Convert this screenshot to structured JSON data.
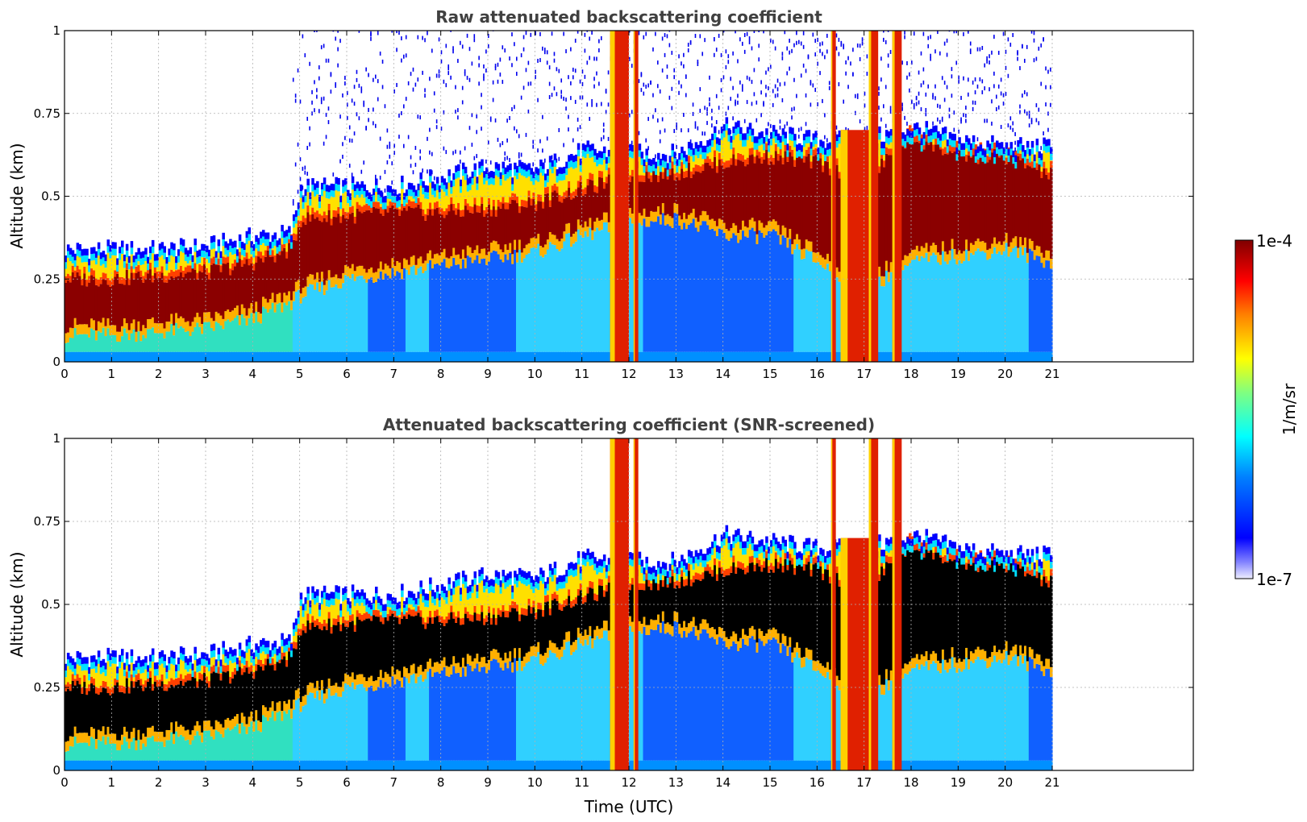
{
  "colorbar": {
    "label": "1/m/sr",
    "max_label": "1e-4",
    "min_label": "1e-7",
    "range": [
      1e-07,
      0.0001
    ],
    "scale": "log",
    "colormap": "jet",
    "colormap_stops": [
      "#eeeeff",
      "#0000ff",
      "#00ffff",
      "#ffff00",
      "#ff0000",
      "#800000"
    ]
  },
  "chart_data": [
    {
      "type": "heatmap",
      "title": "Raw attenuated backscattering coefficient",
      "xlabel": "",
      "ylabel": "Altitude (km)",
      "xlim": [
        0,
        24
      ],
      "ylim": [
        0,
        1
      ],
      "x_ticks": [
        "0",
        "1",
        "2",
        "3",
        "4",
        "5",
        "6",
        "7",
        "8",
        "9",
        "10",
        "11",
        "12",
        "13",
        "14",
        "15",
        "16",
        "17",
        "18",
        "19",
        "20",
        "21"
      ],
      "y_ticks": [
        "0",
        "0.25",
        "0.5",
        "0.75",
        "1"
      ],
      "data_extent_x": [
        0,
        21
      ],
      "grid": true,
      "layer_top_km": [
        [
          0,
          0.33
        ],
        [
          1,
          0.33
        ],
        [
          2,
          0.33
        ],
        [
          3,
          0.34
        ],
        [
          4,
          0.37
        ],
        [
          4.8,
          0.38
        ],
        [
          5,
          0.52
        ],
        [
          6,
          0.52
        ],
        [
          7,
          0.52
        ],
        [
          8,
          0.55
        ],
        [
          9,
          0.58
        ],
        [
          10,
          0.57
        ],
        [
          11,
          0.63
        ],
        [
          12,
          0.62
        ],
        [
          13,
          0.62
        ],
        [
          14,
          0.7
        ],
        [
          15,
          0.68
        ],
        [
          16,
          0.66
        ],
        [
          17,
          0.66
        ],
        [
          18,
          0.7
        ],
        [
          19,
          0.66
        ],
        [
          20,
          0.64
        ],
        [
          21,
          0.64
        ]
      ],
      "dense_layer_km": [
        [
          0,
          0.08,
          0.25
        ],
        [
          1,
          0.08,
          0.25
        ],
        [
          2,
          0.09,
          0.26
        ],
        [
          3,
          0.1,
          0.27
        ],
        [
          4,
          0.13,
          0.3
        ],
        [
          4.8,
          0.18,
          0.34
        ],
        [
          5,
          0.2,
          0.43
        ],
        [
          6,
          0.25,
          0.44
        ],
        [
          7,
          0.27,
          0.45
        ],
        [
          8,
          0.29,
          0.45
        ],
        [
          9,
          0.31,
          0.46
        ],
        [
          10,
          0.33,
          0.48
        ],
        [
          11,
          0.38,
          0.52
        ],
        [
          12,
          0.42,
          0.56
        ],
        [
          13,
          0.43,
          0.57
        ],
        [
          14,
          0.38,
          0.6
        ],
        [
          15,
          0.38,
          0.62
        ],
        [
          16,
          0.3,
          0.6
        ],
        [
          17,
          0.22,
          0.55
        ],
        [
          18,
          0.3,
          0.68
        ],
        [
          19,
          0.32,
          0.62
        ],
        [
          20,
          0.34,
          0.62
        ],
        [
          21,
          0.3,
          0.56
        ]
      ],
      "precipitation_columns": [
        {
          "t_start": 11.6,
          "t_end": 12.0,
          "top_km": 1.0
        },
        {
          "t_start": 12.1,
          "t_end": 12.2,
          "top_km": 1.0
        },
        {
          "t_start": 16.3,
          "t_end": 16.4,
          "top_km": 1.0
        },
        {
          "t_start": 16.5,
          "t_end": 17.1,
          "top_km": 0.7
        },
        {
          "t_start": 17.1,
          "t_end": 17.3,
          "top_km": 1.0
        },
        {
          "t_start": 17.6,
          "t_end": 17.8,
          "top_km": 1.0
        }
      ]
    },
    {
      "type": "heatmap",
      "title": "Attenuated backscattering coefficient (SNR-screened)",
      "xlabel": "Time (UTC)",
      "ylabel": "Altitude (km)",
      "xlim": [
        0,
        24
      ],
      "ylim": [
        0,
        1
      ],
      "x_ticks": [
        "0",
        "1",
        "2",
        "3",
        "4",
        "5",
        "6",
        "7",
        "8",
        "9",
        "10",
        "11",
        "12",
        "13",
        "14",
        "15",
        "16",
        "17",
        "18",
        "19",
        "20",
        "21"
      ],
      "y_ticks": [
        "0",
        "0.25",
        "0.5",
        "0.75",
        "1"
      ],
      "data_extent_x": [
        0,
        21
      ],
      "grid": true,
      "saturated_color": "#000000"
    }
  ]
}
